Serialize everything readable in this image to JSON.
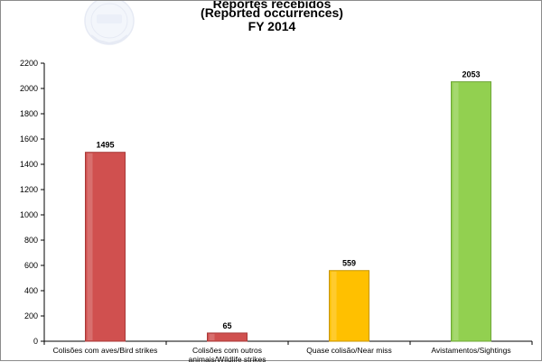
{
  "chart_data": {
    "type": "bar",
    "title_lines": [
      "Reportes recebidos",
      "(Reported occurrences)",
      "FY 2014"
    ],
    "categories": [
      [
        "Colisões com aves/Bird strikes"
      ],
      [
        "Colisões com outros",
        "animais/Wildlife strikes"
      ],
      [
        "Quase colisão/Near miss"
      ],
      [
        "Avistamentos/Sightings"
      ]
    ],
    "values": [
      1495,
      65,
      559,
      2053
    ],
    "bar_colors": [
      "#d0504f",
      "#d0504f",
      "#ffc000",
      "#92d050"
    ],
    "bar_edge_colors": [
      "#a83a39",
      "#a83a39",
      "#c79500",
      "#6ea638"
    ],
    "ylim": [
      0,
      2200
    ],
    "yticks": [
      0,
      200,
      400,
      600,
      800,
      1000,
      1200,
      1400,
      1600,
      1800,
      2000,
      2200
    ],
    "grid": false,
    "legend": "none",
    "data_labels": true
  },
  "logo": {
    "name": "emblem-logo",
    "text": "CENIPA"
  }
}
